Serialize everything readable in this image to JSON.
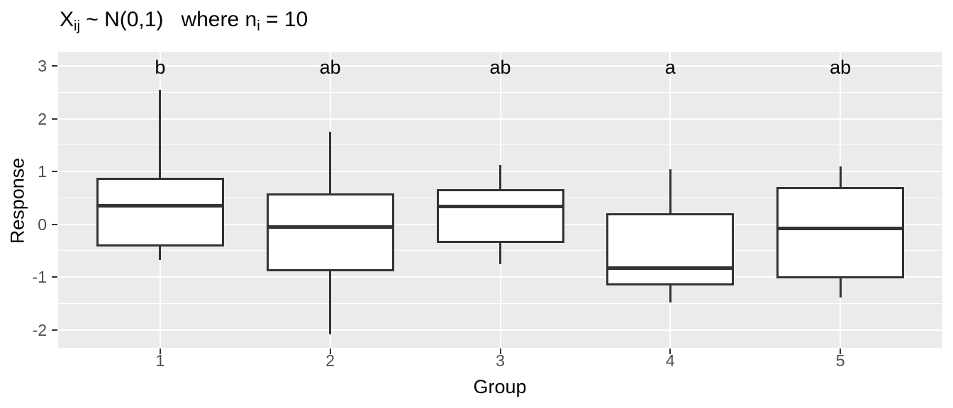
{
  "title": {
    "part1": "X",
    "sub1": "ij",
    "part2": " ~ N(0,1)   where n",
    "sub2": "i",
    "part3": " = 10"
  },
  "chart_data": {
    "type": "boxplot",
    "title": "X_ij ~ N(0,1) where n_i = 10",
    "xlabel": "Group",
    "ylabel": "Response",
    "x_tick_labels": [
      "1",
      "2",
      "3",
      "4",
      "5"
    ],
    "y_tick_labels": [
      "3",
      "2",
      "1",
      "0",
      "-1",
      "-2"
    ],
    "y_tick_values": [
      3,
      2,
      1,
      0,
      -1,
      -2
    ],
    "y_minor_values": [
      2.5,
      1.5,
      0.5,
      -0.5,
      -1.5
    ],
    "ylim": [
      -2.34,
      3.27
    ],
    "grid": "major-and-minor-white-on-gray",
    "legend": "none",
    "letter_y": 2.97,
    "groups": [
      {
        "x": 1,
        "letter": "b",
        "whisker_low": -0.67,
        "q1": -0.42,
        "median": 0.35,
        "q3": 0.88,
        "whisker_high": 2.55
      },
      {
        "x": 2,
        "letter": "ab",
        "whisker_low": -2.08,
        "q1": -0.89,
        "median": -0.05,
        "q3": 0.59,
        "whisker_high": 1.76
      },
      {
        "x": 3,
        "letter": "ab",
        "whisker_low": -0.76,
        "q1": -0.35,
        "median": 0.34,
        "q3": 0.66,
        "whisker_high": 1.12
      },
      {
        "x": 4,
        "letter": "a",
        "whisker_low": -1.48,
        "q1": -1.16,
        "median": -0.83,
        "q3": 0.21,
        "whisker_high": 1.04
      },
      {
        "x": 5,
        "letter": "ab",
        "whisker_low": -1.39,
        "q1": -1.02,
        "median": -0.08,
        "q3": 0.7,
        "whisker_high": 1.1
      }
    ],
    "colors": {
      "panel_bg": "#EBEBEB",
      "grid": "#FFFFFF",
      "box_line": "#333333",
      "box_fill": "#FFFFFF",
      "tick_text": "#4D4D4D",
      "label_text": "#000000"
    }
  }
}
